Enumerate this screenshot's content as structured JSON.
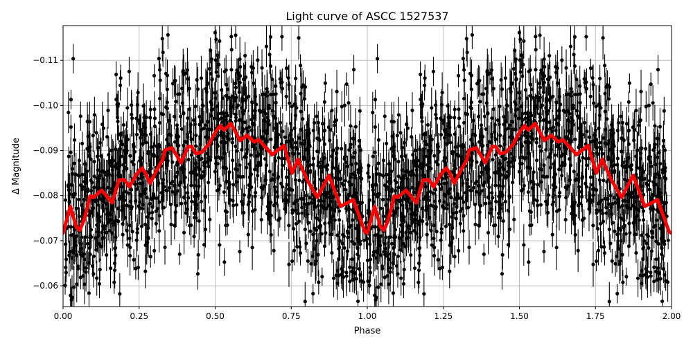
{
  "chart_data": {
    "type": "scatter",
    "title": "Light curve of ASCC 1527537",
    "xlabel": "Phase",
    "ylabel": "Δ Magnitude",
    "xlim": [
      0,
      2
    ],
    "ylim": [
      -0.0554,
      -0.1177
    ],
    "y_inverted": true,
    "grid": true,
    "xticks": [
      "0.00",
      "0.25",
      "0.50",
      "0.75",
      "1.00",
      "1.25",
      "1.50",
      "1.75",
      "2.00"
    ],
    "yticks": [
      "−0.11",
      "−0.10",
      "−0.09",
      "−0.08",
      "−0.07",
      "−0.06"
    ],
    "ytick_values": [
      -0.11,
      -0.1,
      -0.09,
      -0.08,
      -0.07,
      -0.06
    ],
    "series": [
      {
        "kind": "scatter-errorbar",
        "color": "#000000",
        "period_repeat": true
      },
      {
        "kind": "line",
        "color": "#ff0000",
        "period_repeat": true,
        "x": [
          0.0,
          0.024,
          0.043,
          0.055,
          0.07,
          0.089,
          0.1,
          0.127,
          0.161,
          0.184,
          0.203,
          0.218,
          0.241,
          0.26,
          0.271,
          0.286,
          0.309,
          0.328,
          0.335,
          0.358,
          0.388,
          0.411,
          0.422,
          0.437,
          0.456,
          0.479,
          0.502,
          0.517,
          0.529,
          0.552,
          0.582,
          0.605,
          0.628,
          0.643,
          0.688,
          0.726,
          0.753,
          0.772,
          0.802,
          0.836,
          0.874,
          0.912,
          0.954,
          0.992,
          1.0
        ],
        "y": [
          -0.0717,
          -0.0776,
          -0.0732,
          -0.0723,
          -0.0748,
          -0.0799,
          -0.0796,
          -0.0812,
          -0.0784,
          -0.0835,
          -0.0835,
          -0.0819,
          -0.0847,
          -0.0861,
          -0.085,
          -0.0827,
          -0.0858,
          -0.0881,
          -0.0901,
          -0.0906,
          -0.0873,
          -0.0909,
          -0.0909,
          -0.0893,
          -0.0896,
          -0.0914,
          -0.0942,
          -0.0955,
          -0.0945,
          -0.096,
          -0.0922,
          -0.0934,
          -0.0919,
          -0.0924,
          -0.0891,
          -0.0911,
          -0.085,
          -0.0881,
          -0.0835,
          -0.0796,
          -0.0845,
          -0.0776,
          -0.0791,
          -0.072,
          -0.0717
        ]
      }
    ]
  }
}
